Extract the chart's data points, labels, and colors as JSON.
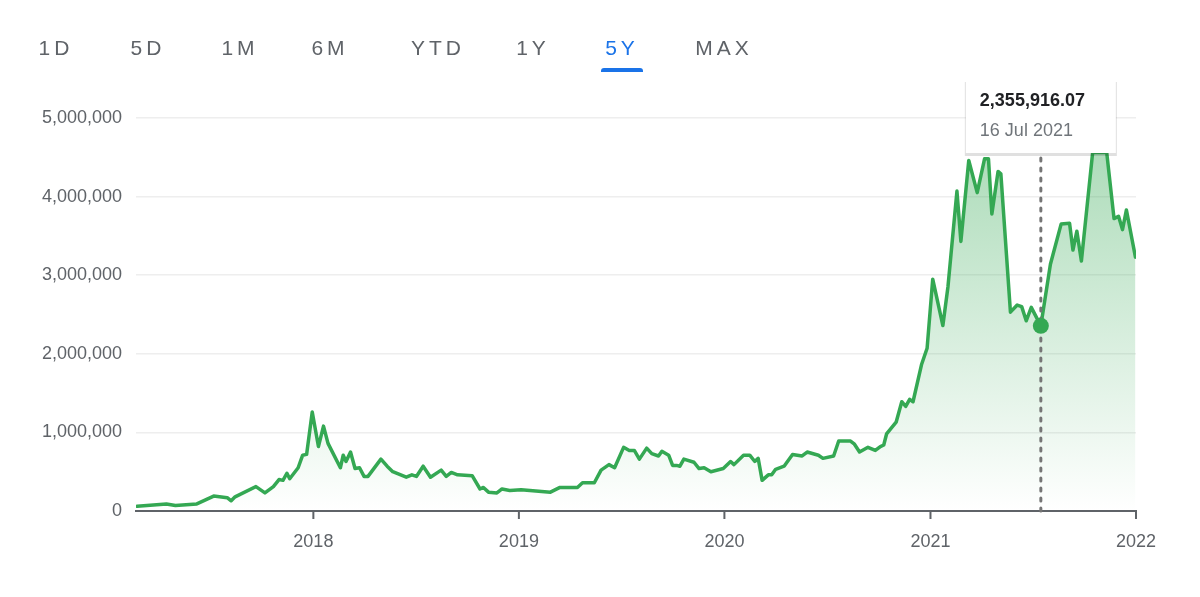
{
  "chart_data": {
    "type": "area",
    "x": [
      "2017-02-22",
      "2017-04-15",
      "2017-05-01",
      "2017-06-08",
      "2017-07-08",
      "2017-08-01",
      "2017-08-08",
      "2017-08-15",
      "2017-09-21",
      "2017-10-07",
      "2017-10-22",
      "2017-11-01",
      "2017-11-08",
      "2017-11-15",
      "2017-11-20",
      "2017-12-05",
      "2017-12-13",
      "2017-12-20",
      "2017-12-30",
      "2018-01-10",
      "2018-01-19",
      "2018-01-27",
      "2018-02-18",
      "2018-02-23",
      "2018-02-28",
      "2018-03-08",
      "2018-03-16",
      "2018-03-24",
      "2018-04-01",
      "2018-04-08",
      "2018-05-01",
      "2018-05-12",
      "2018-05-22",
      "2018-06-15",
      "2018-06-25",
      "2018-07-03",
      "2018-07-15",
      "2018-07-28",
      "2018-08-16",
      "2018-08-25",
      "2018-09-03",
      "2018-09-14",
      "2018-10-10",
      "2018-10-24",
      "2018-10-30",
      "2018-11-08",
      "2018-11-23",
      "2018-12-02",
      "2018-12-16",
      "2019-01-05",
      "2019-02-26",
      "2019-03-15",
      "2019-04-15",
      "2019-04-24",
      "2019-05-15",
      "2019-05-27",
      "2019-06-10",
      "2019-06-20",
      "2019-07-06",
      "2019-07-16",
      "2019-07-25",
      "2019-08-03",
      "2019-08-16",
      "2019-08-25",
      "2019-09-06",
      "2019-09-12",
      "2019-09-24",
      "2019-10-01",
      "2019-10-08",
      "2019-10-14",
      "2019-10-21",
      "2019-11-08",
      "2019-11-17",
      "2019-11-26",
      "2019-12-08",
      "2019-12-30",
      "2020-01-12",
      "2020-01-18",
      "2020-02-04",
      "2020-02-15",
      "2020-02-24",
      "2020-03-01",
      "2020-03-08",
      "2020-03-19",
      "2020-03-25",
      "2020-04-01",
      "2020-04-16",
      "2020-05-01",
      "2020-05-18",
      "2020-05-27",
      "2020-06-16",
      "2020-06-24",
      "2020-07-13",
      "2020-07-22",
      "2020-08-12",
      "2020-08-19",
      "2020-08-28",
      "2020-09-12",
      "2020-09-25",
      "2020-10-04",
      "2020-10-10",
      "2020-10-15",
      "2020-11-01",
      "2020-11-11",
      "2020-11-18",
      "2020-11-25",
      "2020-12-01",
      "2020-12-16",
      "2020-12-26",
      "2021-01-05",
      "2021-01-23",
      "2021-02-01",
      "2021-02-17",
      "2021-02-24",
      "2021-03-10",
      "2021-03-25",
      "2021-04-07",
      "2021-04-14",
      "2021-04-20",
      "2021-05-01",
      "2021-05-06",
      "2021-05-23",
      "2021-06-04",
      "2021-06-12",
      "2021-06-20",
      "2021-06-29",
      "2021-07-16",
      "2021-08-02",
      "2021-08-21",
      "2021-09-05",
      "2021-09-11",
      "2021-09-18",
      "2021-09-26",
      "2021-10-16",
      "2021-11-10",
      "2021-11-23",
      "2021-12-01",
      "2021-12-08",
      "2021-12-15",
      "2021-12-31"
    ],
    "series": [
      {
        "color": "#34a853",
        "values": [
          60000,
          90000,
          70000,
          90000,
          190000,
          170000,
          130000,
          180000,
          310000,
          230000,
          310000,
          400000,
          390000,
          480000,
          410000,
          550000,
          710000,
          720000,
          1260000,
          820000,
          1080000,
          860000,
          550000,
          710000,
          630000,
          750000,
          540000,
          550000,
          440000,
          440000,
          660000,
          570000,
          500000,
          430000,
          460000,
          440000,
          570000,
          430000,
          520000,
          440000,
          490000,
          460000,
          450000,
          280000,
          300000,
          240000,
          230000,
          280000,
          260000,
          270000,
          240000,
          300000,
          300000,
          360000,
          360000,
          520000,
          590000,
          550000,
          810000,
          770000,
          770000,
          660000,
          800000,
          730000,
          700000,
          760000,
          710000,
          580000,
          580000,
          570000,
          660000,
          620000,
          540000,
          550000,
          500000,
          540000,
          630000,
          590000,
          710000,
          710000,
          630000,
          670000,
          390000,
          460000,
          460000,
          530000,
          570000,
          720000,
          700000,
          750000,
          710000,
          670000,
          700000,
          890000,
          890000,
          850000,
          750000,
          810000,
          770000,
          820000,
          840000,
          980000,
          1130000,
          1390000,
          1330000,
          1420000,
          1390000,
          1860000,
          2070000,
          2950000,
          2360000,
          2850000,
          4070000,
          3430000,
          4460000,
          4050000,
          4480000,
          4480000,
          3780000,
          4320000,
          4290000,
          2530000,
          2620000,
          2600000,
          2420000,
          2590000,
          2355916.07,
          3140000,
          3650000,
          3660000,
          3320000,
          3560000,
          3180000,
          4560000,
          4560000,
          3720000,
          3750000,
          3580000,
          3830000,
          3230000
        ]
      }
    ],
    "xlim": [
      "2017-02-20",
      "2022-01-01"
    ],
    "xticks": [
      "2018",
      "2019",
      "2020",
      "2021",
      "2022"
    ],
    "ylim": [
      0,
      5000000
    ],
    "yticks": [
      {
        "value": 0,
        "label": "0"
      },
      {
        "value": 1000000,
        "label": "1,000,000"
      },
      {
        "value": 2000000,
        "label": "2,000,000"
      },
      {
        "value": 3000000,
        "label": "3,000,000"
      },
      {
        "value": 4000000,
        "label": "4,000,000"
      },
      {
        "value": 5000000,
        "label": "5,000,000"
      }
    ],
    "grid": "y",
    "marker": "none",
    "line_style": "solid",
    "ref_lines": [
      {
        "axis": "x",
        "value": "2021-07-16",
        "color": "#757575",
        "line_style": "dotted"
      }
    ],
    "annotations": [
      "1D",
      "5D",
      "1M",
      "6M",
      "YTD",
      "1Y",
      "5Y",
      "MAX",
      "2,355,916.07",
      "16 Jul 2021"
    ]
  }
}
